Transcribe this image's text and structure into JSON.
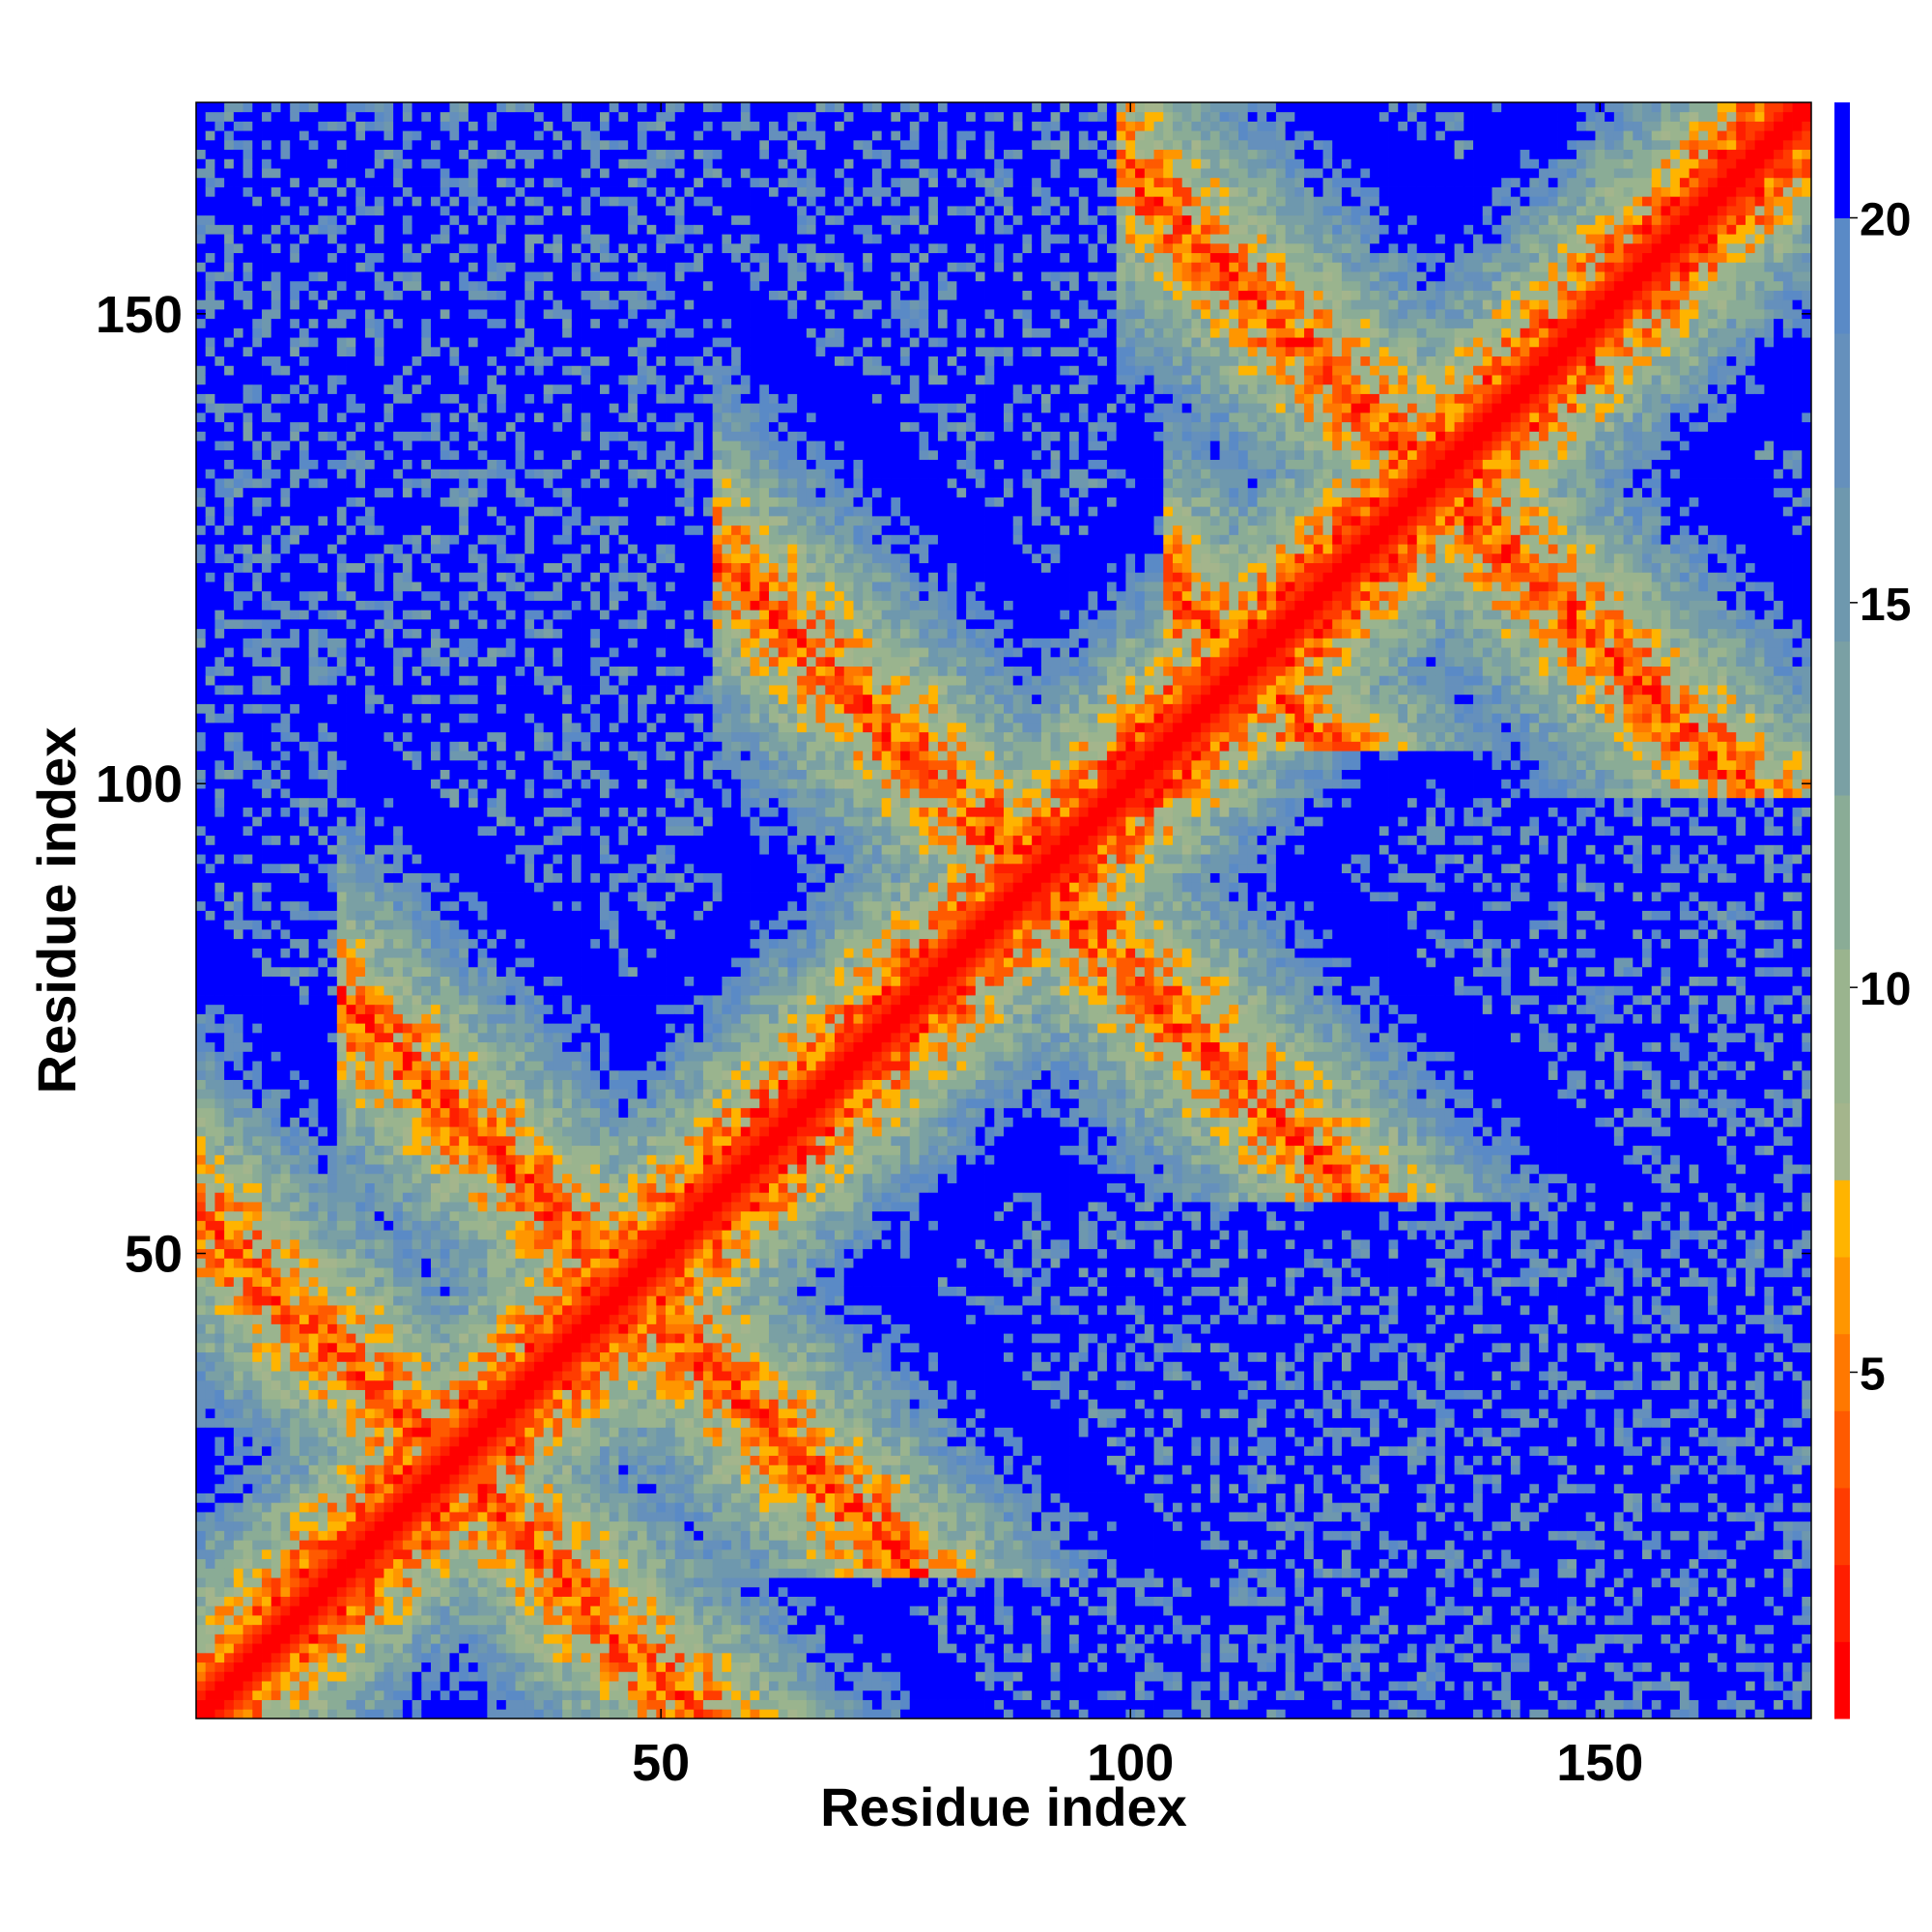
{
  "chart_data": {
    "type": "heatmap",
    "title": "",
    "xlabel": "Residue index",
    "ylabel": "Residue index",
    "n_residues": 172,
    "xlim": [
      1,
      172
    ],
    "ylim": [
      1,
      172
    ],
    "x_ticks": [
      50,
      100,
      150
    ],
    "y_ticks": [
      50,
      100,
      150
    ],
    "colorbar": {
      "ticks": [
        5,
        10,
        15,
        20
      ],
      "range": [
        0.5,
        21.5
      ],
      "colors": [
        {
          "max": 1.5,
          "color": "#ff0000"
        },
        {
          "max": 2.5,
          "color": "#ff1e00"
        },
        {
          "max": 3.5,
          "color": "#ff3c00"
        },
        {
          "max": 4.5,
          "color": "#ff5a00"
        },
        {
          "max": 5.5,
          "color": "#ff7800"
        },
        {
          "max": 6.5,
          "color": "#ff9600"
        },
        {
          "max": 7.5,
          "color": "#ffb400"
        },
        {
          "max": 8.5,
          "color": "#a4b58c"
        },
        {
          "max": 10.5,
          "color": "#9ab48e"
        },
        {
          "max": 12.5,
          "color": "#8aac96"
        },
        {
          "max": 14.5,
          "color": "#7aa0a4"
        },
        {
          "max": 16.5,
          "color": "#6e98ae"
        },
        {
          "max": 18.5,
          "color": "#6590bc"
        },
        {
          "max": 20.0,
          "color": "#5a8ac6"
        },
        {
          "max": 99,
          "color": "#0000ff"
        }
      ]
    },
    "contact_bands": [
      {
        "type": "diagonal",
        "from": 1,
        "to": 172
      },
      {
        "type": "anti",
        "sum": 93,
        "from": 22,
        "to": 72
      },
      {
        "type": "anti",
        "sum": 180,
        "from": 62,
        "to": 118
      },
      {
        "type": "anti",
        "sum": 265,
        "from": 105,
        "to": 160
      },
      {
        "type": "anti",
        "sum": 225,
        "from": 110,
        "to": 172
      },
      {
        "type": "anti",
        "sum": 55,
        "from": 1,
        "to": 55
      }
    ]
  }
}
